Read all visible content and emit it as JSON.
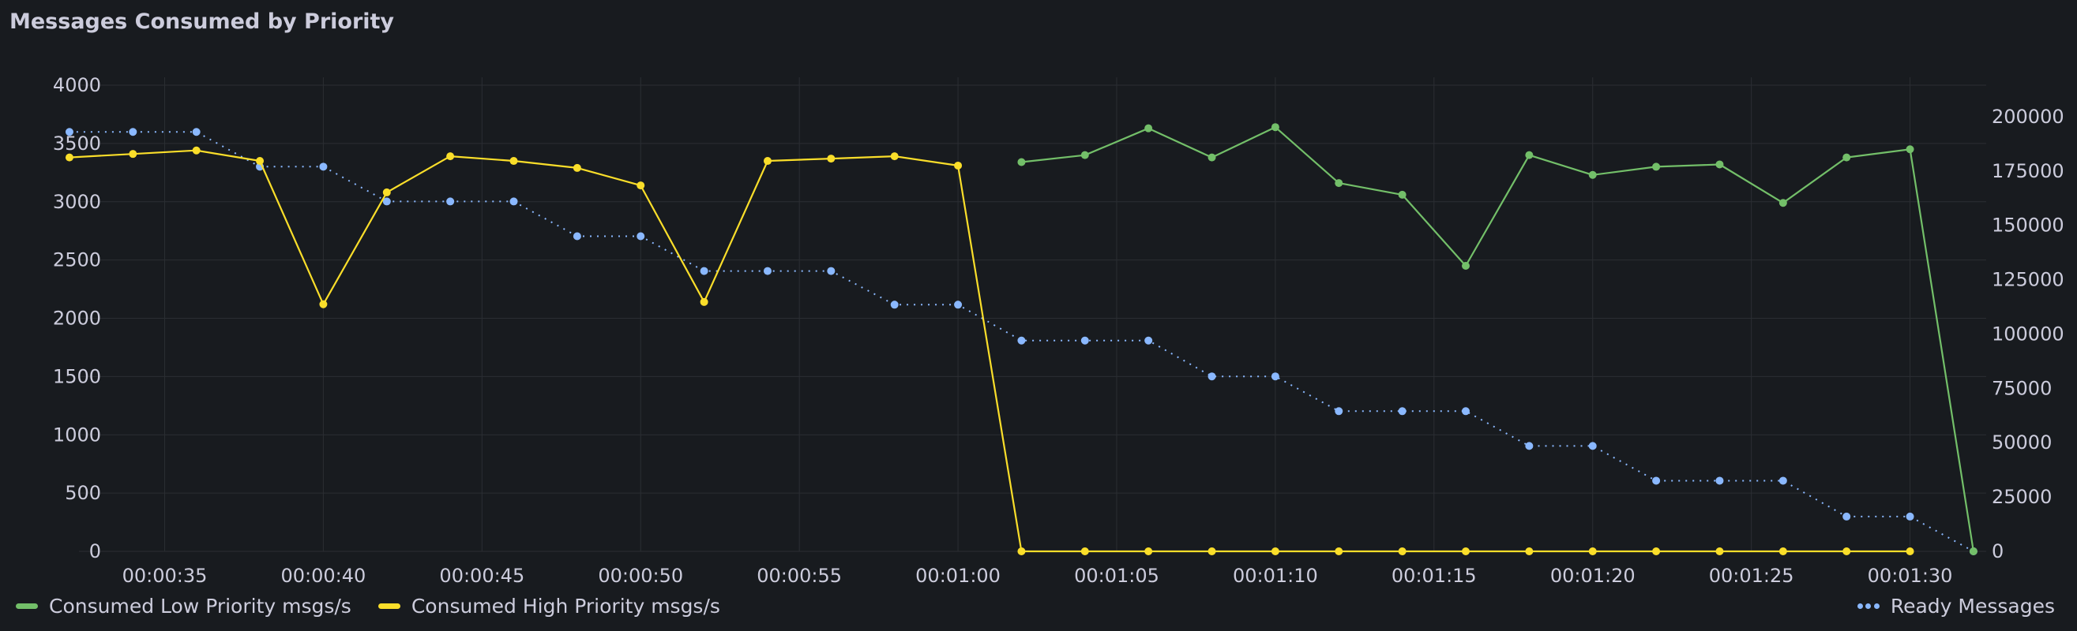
{
  "panel": {
    "title": "Messages Consumed by Priority"
  },
  "colors": {
    "low": "#73bf69",
    "high": "#fade2a",
    "ready": "#8ab8ff",
    "grid": "#2b2e33"
  },
  "legend": {
    "low": "Consumed Low Priority msgs/s",
    "high": "Consumed High Priority msgs/s",
    "ready": "Ready Messages"
  },
  "chart_data": {
    "type": "line",
    "x_ticks": [
      "00:00:35",
      "00:00:40",
      "00:00:45",
      "00:00:50",
      "00:00:55",
      "00:01:00",
      "00:01:05",
      "00:01:10",
      "00:01:15",
      "00:01:20",
      "00:01:25",
      "00:01:30"
    ],
    "x_tick_seconds": [
      35,
      40,
      45,
      50,
      55,
      60,
      65,
      70,
      75,
      80,
      85,
      90
    ],
    "xlim": [
      32.3,
      92.4
    ],
    "y_left": {
      "ticks": [
        0,
        500,
        1000,
        1500,
        2000,
        2500,
        3000,
        3500,
        4000
      ],
      "ylim": [
        0,
        4000
      ]
    },
    "y_right": {
      "ticks": [
        0,
        25000,
        50000,
        75000,
        100000,
        125000,
        150000,
        175000,
        200000
      ],
      "ylim": [
        0,
        214500
      ]
    },
    "series": [
      {
        "name": "Consumed Low Priority msgs/s",
        "axis": "left",
        "style": "solid",
        "x": [
          62,
          64,
          66,
          68,
          70,
          72,
          74,
          76,
          78,
          80,
          82,
          84,
          86,
          88,
          90,
          92
        ],
        "values": [
          3340,
          3400,
          3630,
          3380,
          3640,
          3160,
          3060,
          2450,
          3400,
          3230,
          3300,
          3320,
          2990,
          3380,
          3450,
          0
        ]
      },
      {
        "name": "Consumed High Priority msgs/s",
        "axis": "left",
        "style": "solid",
        "x": [
          32,
          34,
          36,
          38,
          40,
          42,
          44,
          46,
          48,
          50,
          52,
          54,
          56,
          58,
          60,
          62,
          64,
          66,
          68,
          70,
          72,
          74,
          76,
          78,
          80,
          82,
          84,
          86,
          88,
          90
        ],
        "values": [
          3380,
          3410,
          3440,
          3350,
          2120,
          3080,
          3390,
          3350,
          3290,
          3140,
          2140,
          3350,
          3370,
          3390,
          3310,
          0,
          0,
          0,
          0,
          0,
          0,
          0,
          0,
          0,
          0,
          0,
          0,
          0,
          0,
          0
        ]
      },
      {
        "name": "Ready Messages",
        "axis": "right",
        "style": "dotted",
        "x": [
          32,
          34,
          36,
          38,
          40,
          42,
          44,
          46,
          48,
          50,
          52,
          54,
          56,
          58,
          60,
          62,
          64,
          66,
          68,
          70,
          72,
          74,
          76,
          78,
          80,
          82,
          84,
          86,
          88,
          90,
          92
        ],
        "values": [
          193000,
          193000,
          193000,
          177000,
          177000,
          161000,
          161000,
          161000,
          145000,
          145000,
          129000,
          129000,
          129000,
          113500,
          113500,
          97000,
          97000,
          97000,
          80500,
          80500,
          64500,
          64500,
          64500,
          48500,
          48500,
          32500,
          32500,
          32500,
          16000,
          16000,
          0
        ]
      }
    ]
  }
}
